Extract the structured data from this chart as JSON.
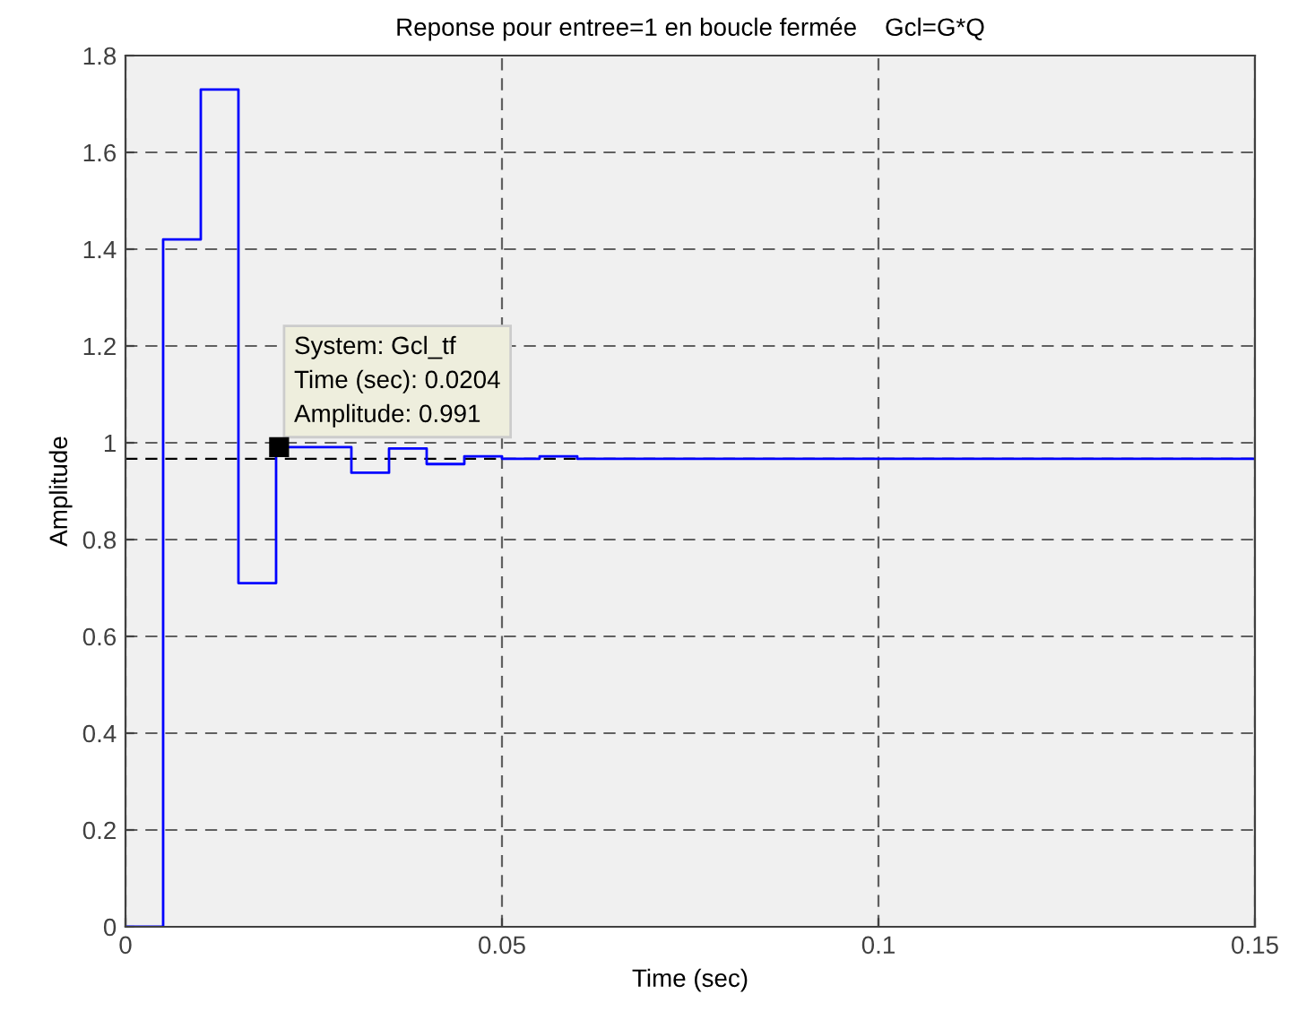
{
  "chart_data": {
    "type": "step",
    "title": "Reponse pour entree=1 en boucle fermée    Gcl=G*Q",
    "xlabel": "Time (sec)",
    "ylabel": "Amplitude",
    "series": [
      {
        "color": "#0000ff",
        "x": [
          0,
          0.005,
          0.01,
          0.015,
          0.02,
          0.03,
          0.035,
          0.04,
          0.045,
          0.05,
          0.055,
          0.06,
          0.15
        ],
        "values": [
          0,
          1.42,
          1.73,
          0.71,
          0.991,
          0.938,
          0.988,
          0.956,
          0.972,
          0.967,
          0.972,
          0.967,
          0.967
        ]
      }
    ],
    "xlim": [
      0,
      0.15
    ],
    "ylim": [
      0,
      1.8
    ],
    "xticks": [
      0,
      0.05,
      0.1,
      0.15
    ],
    "yticks": [
      0,
      0.2,
      0.4,
      0.6,
      0.8,
      1,
      1.2,
      1.4,
      1.6,
      1.8
    ],
    "grid": true,
    "line_style": "solid",
    "marker": "none",
    "ref_lines": [
      {
        "axis": "y",
        "value": 0.967,
        "color": "#000000",
        "line_style": "dashed"
      }
    ],
    "annotations": [
      {
        "text": "System: Gcl_tf\nTime (sec): 0.0204\nAmplitude: 0.991",
        "x": 0.0204,
        "y": 0.991
      }
    ]
  }
}
